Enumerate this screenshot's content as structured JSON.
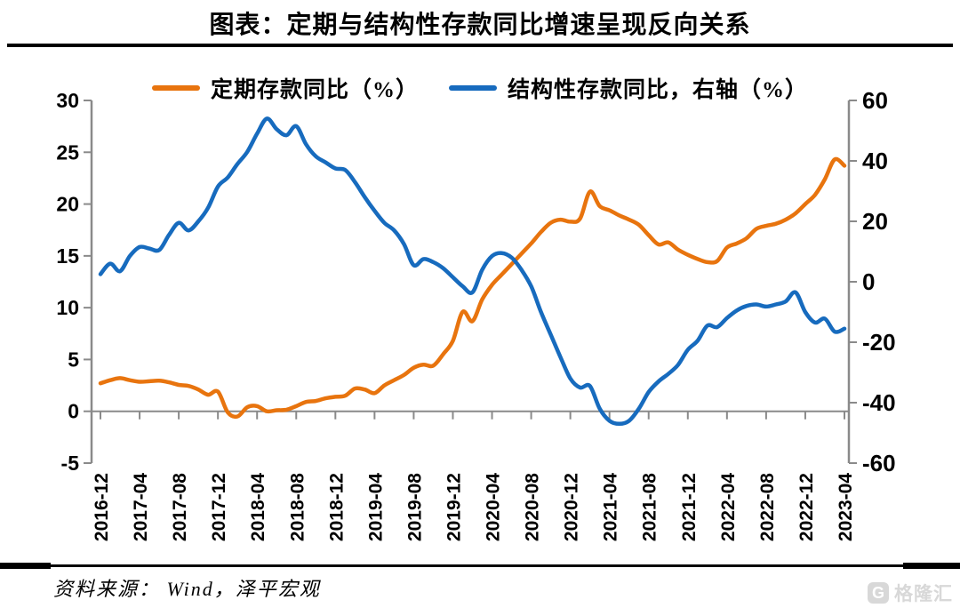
{
  "header": {
    "title": "图表：定期与结构性存款同比增速呈现反向关系"
  },
  "legend": {
    "items": [
      {
        "label": "定期存款同比（%）",
        "color": "#E8740E"
      },
      {
        "label": "结构性存款同比，右轴（%）",
        "color": "#176BBE"
      }
    ]
  },
  "footer": {
    "source_label": "资料来源：  Wind，泽平宏观",
    "logo_icon": "G",
    "logo_text": "格隆汇"
  },
  "colors": {
    "axis_gray": "#8a8a8a",
    "orange": "#E8740E",
    "blue": "#176BBE"
  },
  "chart_data": {
    "type": "line",
    "title": "图表：定期与结构性存款同比增速呈现反向关系",
    "x_start": "2016-12",
    "x_end": "2023-04",
    "frequency": "monthly",
    "x_tick_labels": [
      "2016-12",
      "2017-04",
      "2017-08",
      "2017-12",
      "2018-04",
      "2018-08",
      "2018-12",
      "2019-04",
      "2019-08",
      "2019-12",
      "2020-04",
      "2020-08",
      "2020-12",
      "2021-04",
      "2021-08",
      "2021-12",
      "2022-04",
      "2022-08",
      "2022-12",
      "2023-04"
    ],
    "left_axis": {
      "min": -5,
      "max": 30,
      "ticks": [
        30,
        25,
        20,
        15,
        10,
        5,
        0,
        -5
      ]
    },
    "right_axis": {
      "min": -60,
      "max": 60,
      "ticks": [
        60,
        40,
        20,
        0,
        -20,
        -40,
        -60
      ]
    },
    "zero_line_axis": "left",
    "grid": false,
    "legend_position": "top",
    "series": [
      {
        "name": "定期存款同比（%）",
        "axis": "left",
        "color": "#E8740E",
        "values": [
          2.7,
          3.0,
          3.2,
          3.0,
          2.85,
          2.9,
          2.95,
          2.8,
          2.55,
          2.45,
          2.1,
          1.6,
          1.9,
          -0.1,
          -0.5,
          0.4,
          0.5,
          0.0,
          0.1,
          0.15,
          0.5,
          0.9,
          1.0,
          1.25,
          1.4,
          1.5,
          2.2,
          2.1,
          1.75,
          2.5,
          3.0,
          3.5,
          4.2,
          4.5,
          4.4,
          5.5,
          6.8,
          9.6,
          8.7,
          10.8,
          12.2,
          13.2,
          14.2,
          15.2,
          16.2,
          17.3,
          18.2,
          18.5,
          18.3,
          18.6,
          21.2,
          19.8,
          19.4,
          18.9,
          18.5,
          18.0,
          17.0,
          16.1,
          16.3,
          15.6,
          15.1,
          14.7,
          14.4,
          14.5,
          15.8,
          16.2,
          16.7,
          17.6,
          17.9,
          18.1,
          18.5,
          19.1,
          20.0,
          20.9,
          22.4,
          24.3,
          23.7
        ]
      },
      {
        "name": "结构性存款同比，右轴（%）",
        "axis": "right",
        "color": "#176BBE",
        "values": [
          2.5,
          6.0,
          3.5,
          8.5,
          11.5,
          11.0,
          10.5,
          15.5,
          19.5,
          17.0,
          20.0,
          24.5,
          31.5,
          34.5,
          39.0,
          43.0,
          49.0,
          54.0,
          50.5,
          48.5,
          51.5,
          45.5,
          41.5,
          39.5,
          37.5,
          37.0,
          33.0,
          28.0,
          23.5,
          19.5,
          17.0,
          12.5,
          5.5,
          7.5,
          6.5,
          4.5,
          1.5,
          -1.5,
          -3.5,
          4.0,
          8.5,
          9.5,
          8.0,
          4.0,
          -1.5,
          -10.0,
          -17.5,
          -25.0,
          -32.0,
          -35.0,
          -34.5,
          -42.0,
          -46.0,
          -47.0,
          -46.0,
          -42.0,
          -36.5,
          -33.0,
          -30.5,
          -27.5,
          -22.5,
          -19.5,
          -14.5,
          -15.0,
          -12.0,
          -9.5,
          -8.0,
          -7.5,
          -8.2,
          -7.5,
          -6.5,
          -3.5,
          -10.0,
          -13.5,
          -12.2,
          -16.5,
          -15.5
        ]
      }
    ]
  }
}
